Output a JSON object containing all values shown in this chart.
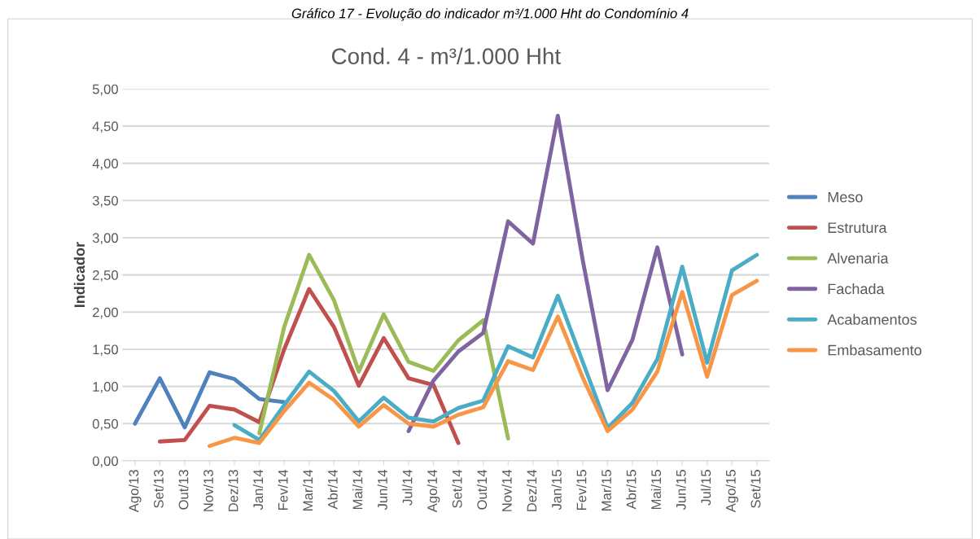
{
  "chart_data": {
    "type": "line",
    "title": "Cond. 4 - m³/1.000 Hht",
    "ylabel": "Indicador",
    "annotations": [
      "Gráfico 17 - Evolução do indicador m³/1.000 Hht do Condomínio 4"
    ],
    "categories": [
      "Ago/13",
      "Set/13",
      "Out/13",
      "Nov/13",
      "Dez/13",
      "Jan/14",
      "Fev/14",
      "Mar/14",
      "Abr/14",
      "Mai/14",
      "Jun/14",
      "Jul/14",
      "Ago/14",
      "Set/14",
      "Out/14",
      "Nov/14",
      "Dez/14",
      "Jan/15",
      "Fev/15",
      "Mar/15",
      "Abr/15",
      "Mai/15",
      "Jun/15",
      "Jul/15",
      "Ago/15",
      "Set/15"
    ],
    "series": [
      {
        "name": "Meso",
        "color": "#4f81bd",
        "values": [
          0.5,
          1.11,
          0.45,
          1.19,
          1.1,
          0.83,
          0.79,
          null,
          null,
          null,
          null,
          null,
          null,
          null,
          null,
          null,
          null,
          null,
          null,
          null,
          null,
          null,
          null,
          null,
          null,
          null
        ]
      },
      {
        "name": "Estrutura",
        "color": "#c0504d",
        "values": [
          null,
          0.26,
          0.28,
          0.74,
          0.69,
          0.52,
          1.5,
          2.31,
          1.8,
          1.01,
          1.65,
          1.11,
          1.02,
          0.24,
          null,
          null,
          null,
          null,
          null,
          null,
          null,
          null,
          null,
          null,
          null,
          null
        ]
      },
      {
        "name": "Alvenaria",
        "color": "#9bbb59",
        "values": [
          null,
          null,
          null,
          null,
          null,
          0.37,
          1.8,
          2.77,
          2.16,
          1.2,
          1.97,
          1.33,
          1.21,
          1.62,
          1.89,
          0.3,
          null,
          null,
          null,
          null,
          null,
          null,
          null,
          null,
          null,
          null
        ]
      },
      {
        "name": "Fachada",
        "color": "#8064a2",
        "values": [
          null,
          null,
          null,
          null,
          null,
          null,
          null,
          null,
          null,
          null,
          null,
          0.4,
          1.08,
          1.47,
          1.72,
          3.22,
          2.92,
          4.64,
          2.7,
          0.95,
          1.63,
          2.87,
          1.43,
          null,
          null,
          null
        ]
      },
      {
        "name": "Acabamentos",
        "color": "#4bacc6",
        "values": [
          null,
          null,
          null,
          null,
          0.48,
          0.28,
          0.75,
          1.2,
          0.94,
          0.53,
          0.85,
          0.58,
          0.53,
          0.71,
          0.81,
          1.54,
          1.39,
          2.22,
          1.33,
          0.44,
          0.78,
          1.37,
          2.61,
          1.32,
          2.56,
          2.77
        ]
      },
      {
        "name": "Embasamento",
        "color": "#f79646",
        "values": [
          null,
          null,
          null,
          0.2,
          0.31,
          0.24,
          0.67,
          1.05,
          0.82,
          0.46,
          0.75,
          0.5,
          0.46,
          0.62,
          0.72,
          1.34,
          1.22,
          1.94,
          1.12,
          0.4,
          0.69,
          1.2,
          2.27,
          1.13,
          2.23,
          2.42
        ]
      }
    ],
    "ylim": [
      0,
      5
    ],
    "yticks": [
      {
        "value": 0,
        "label": "0,00"
      },
      {
        "value": 0.5,
        "label": "0,50"
      },
      {
        "value": 1,
        "label": "1,00"
      },
      {
        "value": 1.5,
        "label": "1,50"
      },
      {
        "value": 2,
        "label": "2,00"
      },
      {
        "value": 2.5,
        "label": "2,50"
      },
      {
        "value": 3,
        "label": "3,00"
      },
      {
        "value": 3.5,
        "label": "3,50"
      },
      {
        "value": 4,
        "label": "4,00"
      },
      {
        "value": 4.5,
        "label": "4,50"
      },
      {
        "value": 5,
        "label": "5,00"
      }
    ],
    "grid": "y",
    "legend": "right",
    "marker": "none",
    "line_style": "solid"
  }
}
